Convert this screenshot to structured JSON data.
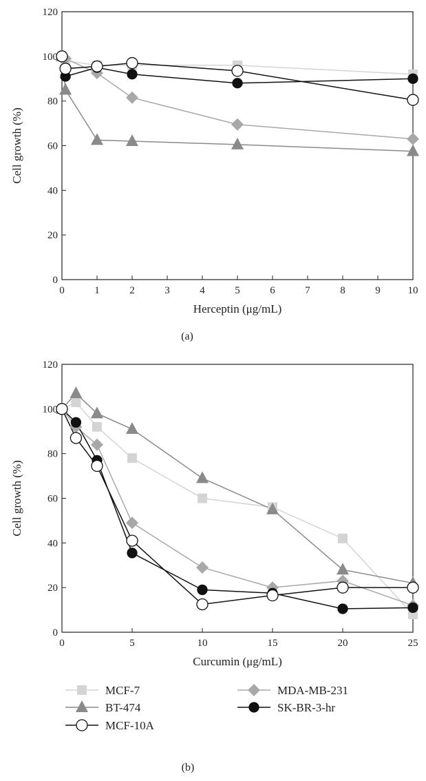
{
  "figure": {
    "caption_a": "(a)",
    "caption_b": "(b)"
  },
  "colors": {
    "MCF-7": "#d4d4d4",
    "BT-474": "#8a8a8a",
    "MDA-MB-231": "#a8a8a8",
    "SK-BR-3-hr": "#111111",
    "MCF-10A": "#111111",
    "axis": "#222222"
  },
  "legend": {
    "items": [
      {
        "name": "MCF-7",
        "marker": "square",
        "filled": true
      },
      {
        "name": "BT-474",
        "marker": "triangle",
        "filled": true
      },
      {
        "name": "MCF-10A",
        "marker": "circle",
        "filled": false
      },
      {
        "name": "MDA-MB-231",
        "marker": "diamond",
        "filled": true
      },
      {
        "name": "SK-BR-3-hr",
        "marker": "circle",
        "filled": true
      }
    ]
  },
  "chart_data": [
    {
      "type": "line",
      "caption": "(a)",
      "xlabel": "Herceptin (μg/mL)",
      "ylabel": "Cell growth (%)",
      "xlim": [
        0,
        10
      ],
      "ylim": [
        0,
        120
      ],
      "xticks": [
        0,
        1,
        2,
        3,
        4,
        5,
        6,
        7,
        8,
        9,
        10
      ],
      "yticks": [
        0,
        20,
        40,
        60,
        80,
        100,
        120
      ],
      "grid": false,
      "series": [
        {
          "name": "MCF-7",
          "x": [
            0,
            0.1,
            1,
            2,
            5,
            10
          ],
          "values": [
            100,
            98,
            96,
            96,
            96,
            92
          ]
        },
        {
          "name": "BT-474",
          "x": [
            0,
            0.1,
            1,
            2,
            5,
            10
          ],
          "values": [
            100,
            85,
            62.5,
            62,
            60.5,
            57.5
          ]
        },
        {
          "name": "MDA-MB-231",
          "x": [
            0,
            0.1,
            1,
            2,
            5,
            10
          ],
          "values": [
            100,
            99,
            92.5,
            81.5,
            69.5,
            63
          ]
        },
        {
          "name": "SK-BR-3-hr",
          "x": [
            0.1,
            1,
            2,
            5,
            10
          ],
          "values": [
            91,
            95,
            92,
            88,
            90
          ]
        },
        {
          "name": "MCF-10A",
          "x": [
            0,
            0.1,
            1,
            2,
            5,
            10
          ],
          "values": [
            100,
            94.5,
            95.5,
            97,
            93.5,
            80.5
          ]
        }
      ]
    },
    {
      "type": "line",
      "caption": "(b)",
      "xlabel": "Curcumin (μg/mL)",
      "ylabel": "Cell growth (%)",
      "xlim": [
        0,
        25
      ],
      "ylim": [
        0,
        120
      ],
      "xticks": [
        0,
        5,
        10,
        15,
        20,
        25
      ],
      "yticks": [
        0,
        20,
        40,
        60,
        80,
        100,
        120
      ],
      "grid": false,
      "series": [
        {
          "name": "MCF-7",
          "x": [
            0,
            1,
            2.5,
            5,
            10,
            15,
            20,
            25
          ],
          "values": [
            100,
            103,
            92,
            78,
            60,
            56,
            42,
            8
          ]
        },
        {
          "name": "BT-474",
          "x": [
            0,
            1,
            2.5,
            5,
            10,
            15,
            20,
            25
          ],
          "values": [
            100,
            107,
            98,
            91,
            69,
            55,
            28,
            22
          ]
        },
        {
          "name": "MDA-MB-231",
          "x": [
            0,
            1,
            2.5,
            5,
            10,
            15,
            20,
            25
          ],
          "values": [
            100,
            92,
            84,
            49,
            29,
            20,
            23,
            12
          ]
        },
        {
          "name": "SK-BR-3-hr",
          "x": [
            0,
            1,
            2.5,
            5,
            10,
            15,
            20,
            25
          ],
          "values": [
            100,
            94,
            77,
            35.5,
            19,
            17.5,
            10.5,
            11
          ]
        },
        {
          "name": "MCF-10A",
          "x": [
            0,
            1,
            2.5,
            5,
            10,
            15,
            20,
            25
          ],
          "values": [
            100,
            87,
            74.5,
            41,
            12.5,
            16.5,
            20,
            20
          ]
        }
      ]
    }
  ]
}
